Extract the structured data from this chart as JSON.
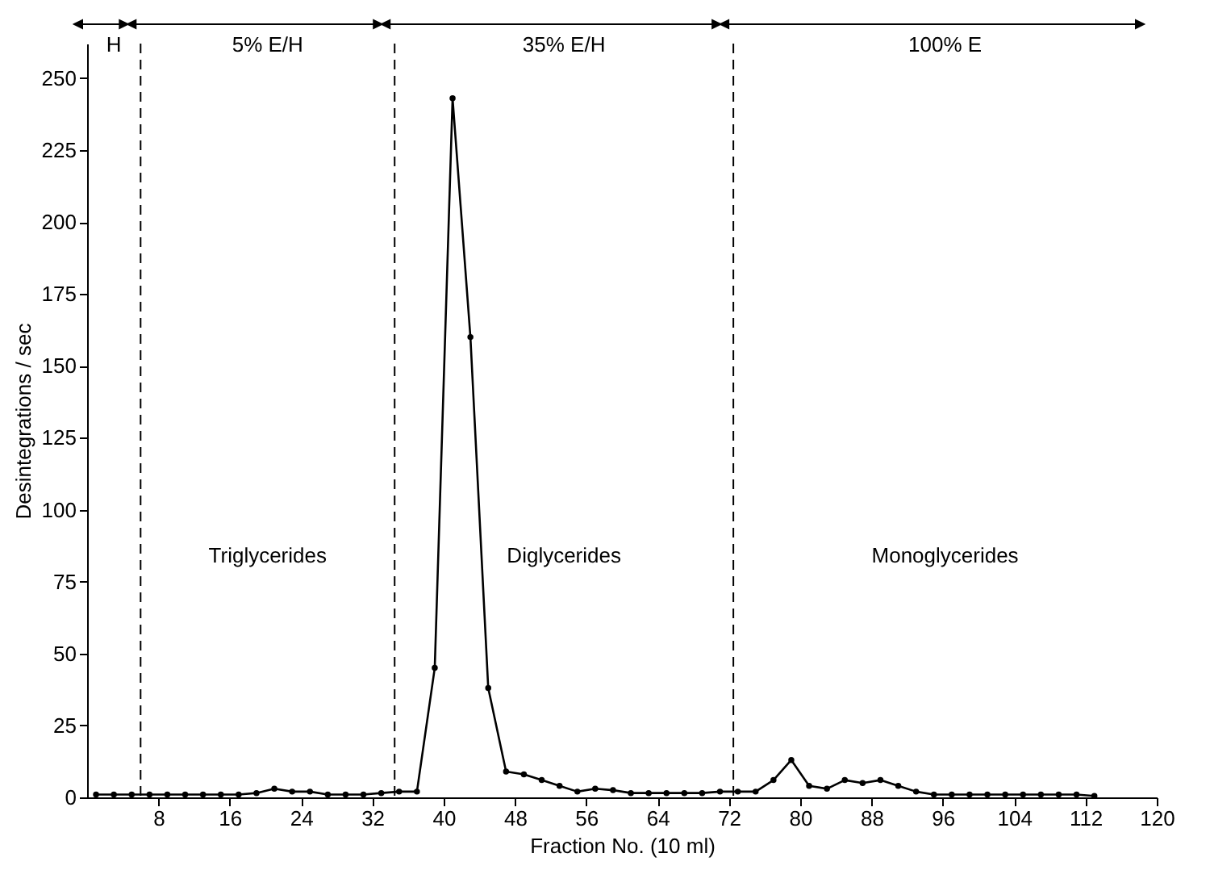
{
  "chart_data": {
    "type": "line",
    "xlabel": "Fraction No. (10 ml)",
    "ylabel": "Desintegrations / sec",
    "x": [
      1,
      3,
      5,
      7,
      9,
      11,
      13,
      15,
      17,
      19,
      21,
      23,
      25,
      27,
      29,
      31,
      33,
      35,
      37,
      39,
      41,
      43,
      45,
      47,
      49,
      51,
      53,
      55,
      57,
      59,
      61,
      63,
      65,
      67,
      69,
      71,
      73,
      75,
      77,
      79,
      81,
      83,
      85,
      87,
      89,
      91,
      93,
      95,
      97,
      99,
      101,
      103,
      105,
      107,
      109,
      111,
      113
    ],
    "series": [
      {
        "color": "#000000",
        "values": [
          1,
          1,
          1,
          1,
          1,
          1,
          1,
          1,
          1,
          1.5,
          3,
          2,
          2,
          1,
          1,
          1,
          1.5,
          2,
          2,
          45,
          243,
          160,
          38,
          9,
          8,
          6,
          4,
          2,
          3,
          2.5,
          1.5,
          1.5,
          1.5,
          1.5,
          1.5,
          2,
          2,
          2,
          6,
          13,
          4,
          3,
          6,
          5,
          6,
          4,
          2,
          1,
          1,
          1,
          1,
          1,
          1,
          1,
          1,
          1,
          0.5
        ]
      }
    ],
    "xlim": [
      0,
      120
    ],
    "ylim": [
      0,
      262
    ],
    "xticks": [
      8,
      16,
      24,
      32,
      40,
      48,
      56,
      64,
      72,
      80,
      88,
      96,
      104,
      112,
      120
    ],
    "yticks": [
      0,
      25,
      50,
      75,
      100,
      125,
      150,
      175,
      200,
      225,
      250
    ],
    "grid": false,
    "marker": "circle",
    "line_style": "solid",
    "ref_lines": [
      {
        "axis": "x",
        "value": 6,
        "line_style": "dashed"
      },
      {
        "axis": "x",
        "value": 34.5,
        "line_style": "dashed"
      },
      {
        "axis": "x",
        "value": 72.5,
        "line_style": "dashed"
      }
    ],
    "annotations": [
      "H",
      "5% E/H",
      "35% E/H",
      "100% E",
      "Triglycerides",
      "Diglycerides",
      "Monoglycerides"
    ]
  }
}
